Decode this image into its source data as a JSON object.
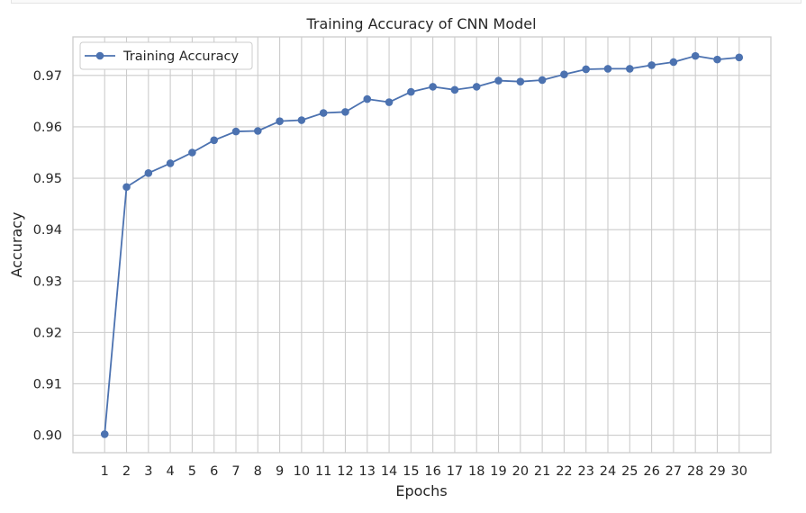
{
  "chart_data": {
    "type": "line",
    "title": "Training Accuracy of CNN Model",
    "xlabel": "Epochs",
    "ylabel": "Accuracy",
    "x": [
      1,
      2,
      3,
      4,
      5,
      6,
      7,
      8,
      9,
      10,
      11,
      12,
      13,
      14,
      15,
      16,
      17,
      18,
      19,
      20,
      21,
      22,
      23,
      24,
      25,
      26,
      27,
      28,
      29,
      30
    ],
    "series": [
      {
        "name": "Training Accuracy",
        "color": "#4c72b0",
        "marker": "circle",
        "values": [
          0.9002,
          0.9483,
          0.951,
          0.9529,
          0.955,
          0.9574,
          0.9591,
          0.9592,
          0.9611,
          0.9613,
          0.9627,
          0.9629,
          0.9654,
          0.9648,
          0.9668,
          0.9678,
          0.9672,
          0.9678,
          0.969,
          0.9688,
          0.9691,
          0.9702,
          0.9712,
          0.9713,
          0.9713,
          0.972,
          0.9726,
          0.9738,
          0.9731,
          0.9735
        ]
      }
    ],
    "yticks": [
      0.9,
      0.91,
      0.92,
      0.93,
      0.94,
      0.95,
      0.96,
      0.97
    ],
    "ytick_labels": [
      "0.90",
      "0.91",
      "0.92",
      "0.93",
      "0.94",
      "0.95",
      "0.96",
      "0.97"
    ],
    "xticks": [
      1,
      2,
      3,
      4,
      5,
      6,
      7,
      8,
      9,
      10,
      11,
      12,
      13,
      14,
      15,
      16,
      17,
      18,
      19,
      20,
      21,
      22,
      23,
      24,
      25,
      26,
      27,
      28,
      29,
      30
    ],
    "xtick_labels": [
      "1",
      "2",
      "3",
      "4",
      "5",
      "6",
      "7",
      "8",
      "9",
      "10",
      "11",
      "12",
      "13",
      "14",
      "15",
      "16",
      "17",
      "18",
      "19",
      "20",
      "21",
      "22",
      "23",
      "24",
      "25",
      "26",
      "27",
      "28",
      "29",
      "30"
    ],
    "xlim": [
      -0.45,
      31.45
    ],
    "ylim": [
      0.8966,
      0.9775
    ],
    "grid": true,
    "legend_position": "upper-left",
    "grid_color": "#cccccc",
    "spine_color": "#cccccc"
  }
}
